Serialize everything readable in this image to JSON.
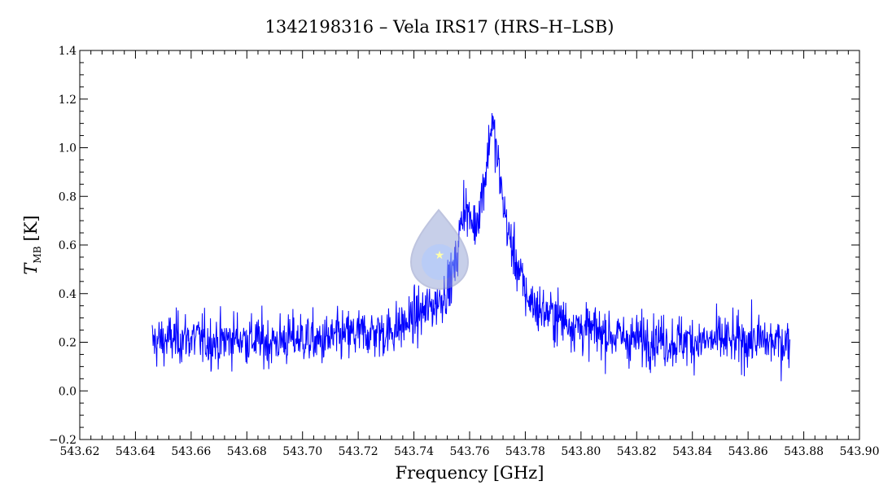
{
  "chart_data": {
    "type": "line",
    "title": "1342198316 – Vela IRS17 (HRS–H–LSB)",
    "xlabel": "Frequency [GHz]",
    "ylabel_main": "T",
    "ylabel_sub": "MB",
    "ylabel_unit": "[K]",
    "xlim": [
      543.62,
      543.9
    ],
    "ylim": [
      -0.2,
      1.4
    ],
    "x_ticks": [
      "543.62",
      "543.64",
      "543.66",
      "543.68",
      "543.70",
      "543.72",
      "543.74",
      "543.76",
      "543.78",
      "543.80",
      "543.82",
      "543.84",
      "543.86",
      "543.88",
      "543.90"
    ],
    "y_ticks": [
      "-0.2",
      "0.0",
      "0.2",
      "0.4",
      "0.6",
      "0.8",
      "1.0",
      "1.2",
      "1.4"
    ],
    "grid": false,
    "series": [
      {
        "color": "#0000ff",
        "x": [
          543.646,
          543.652,
          543.658,
          543.664,
          543.67,
          543.676,
          543.682,
          543.688,
          543.694,
          543.7,
          543.706,
          543.712,
          543.718,
          543.724,
          543.73,
          543.736,
          543.74,
          543.744,
          543.748,
          543.752,
          543.755,
          543.758,
          543.76,
          543.762,
          543.764,
          543.766,
          543.768,
          543.77,
          543.772,
          543.774,
          543.776,
          543.778,
          543.78,
          543.784,
          543.79,
          543.796,
          543.802,
          543.808,
          543.814,
          543.82,
          543.826,
          543.832,
          543.838,
          543.844,
          543.85,
          543.856,
          543.862,
          543.868,
          543.875
        ],
        "y": [
          0.2,
          0.21,
          0.22,
          0.21,
          0.2,
          0.22,
          0.21,
          0.2,
          0.21,
          0.22,
          0.2,
          0.22,
          0.23,
          0.24,
          0.24,
          0.27,
          0.3,
          0.33,
          0.36,
          0.42,
          0.52,
          0.78,
          0.7,
          0.68,
          0.78,
          0.92,
          1.12,
          0.95,
          0.78,
          0.64,
          0.56,
          0.48,
          0.4,
          0.34,
          0.31,
          0.28,
          0.25,
          0.24,
          0.22,
          0.21,
          0.22,
          0.2,
          0.21,
          0.2,
          0.21,
          0.2,
          0.21,
          0.2,
          0.2
        ]
      }
    ]
  }
}
